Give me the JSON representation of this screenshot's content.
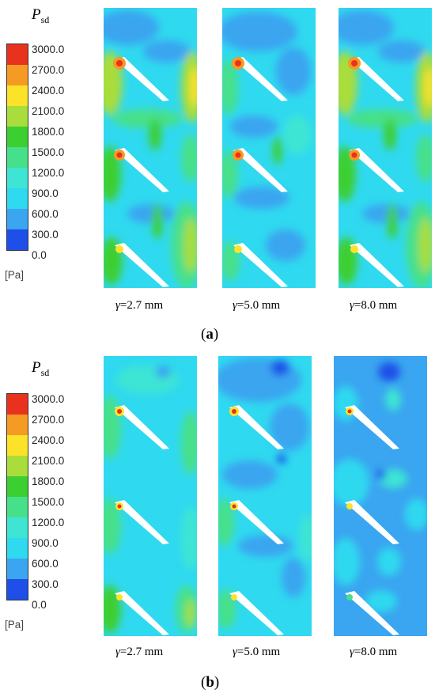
{
  "colorbar": {
    "symbol": "P",
    "symbol_sub": "sd",
    "ticks": [
      "3000.0",
      "2700.0",
      "2400.0",
      "2100.0",
      "1800.0",
      "1500.0",
      "1200.0",
      "900.0",
      "600.0",
      "300.0",
      "0.0"
    ],
    "unit": "[Pa]",
    "colors": [
      "#e8321e",
      "#f59a23",
      "#fde22a",
      "#a9dd3b",
      "#3ccf32",
      "#46e08a",
      "#3ee5d4",
      "#2fd9ef",
      "#3aa5f0",
      "#1e4fe8"
    ]
  },
  "panels": [
    {
      "label": "a",
      "captions": [
        {
          "symbol": "γ",
          "text": "=2.7 mm"
        },
        {
          "symbol": "γ",
          "text": "=5.0 mm"
        },
        {
          "symbol": "γ",
          "text": "=8.0 mm"
        }
      ]
    },
    {
      "label": "b",
      "captions": [
        {
          "symbol": "γ",
          "text": "=2.7 mm"
        },
        {
          "symbol": "γ",
          "text": "=5.0 mm"
        },
        {
          "symbol": "γ",
          "text": "=8.0 mm"
        }
      ]
    }
  ]
}
